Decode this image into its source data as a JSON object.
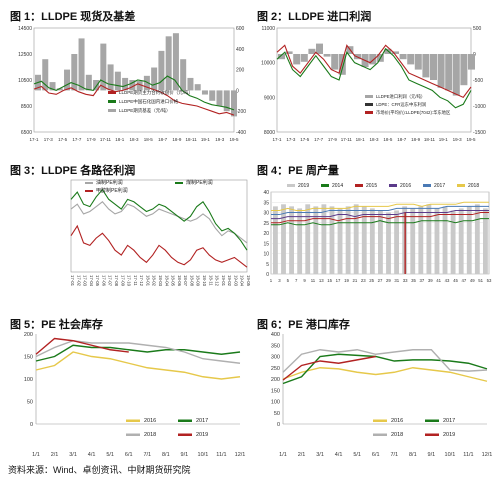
{
  "titles": {
    "fig1": "图 1：LLDPE 现货及基差",
    "fig2": "图 2：LLDPE 进口利润",
    "fig3": "图 3：LLDPE 各路径利润",
    "fig4": "图 4：PE 周产量",
    "fig5": "图 5：PE 社会库存",
    "fig6": "图 6：PE 港口库存"
  },
  "source": "资料来源：Wind、卓创资讯、中财期货研究院",
  "colors": {
    "green": "#1a7a1a",
    "red": "#b22222",
    "gray": "#a6a6a6",
    "dark": "#333333",
    "yellow": "#e6c84a",
    "blue": "#4a7ab5",
    "orange": "#e8872e"
  },
  "chart_data": [
    {
      "id": "fig1",
      "type": "area",
      "y_left": [
        6500,
        8500,
        10500,
        12500,
        14500
      ],
      "y_right": [
        -400,
        -200,
        0,
        200,
        400,
        600
      ],
      "x_ticks": [
        "17-1",
        "17-3",
        "17-5",
        "17-7",
        "17-9",
        "17-11",
        "18-1",
        "18-3",
        "18-5",
        "18-7",
        "18-9",
        "18-11",
        "19-1",
        "19-3",
        "19-5"
      ],
      "legend": [
        "LLDPE期货主力合约收盘价（元/吨）",
        "LLDPE中国石化国内进口价格",
        "LLDPE期货基差（元/吨）"
      ],
      "series": [
        {
          "values": [
            9800,
            10000,
            9500,
            9400,
            9700,
            9900,
            9600,
            9400,
            9300,
            10100,
            9800,
            9600,
            9700,
            9900,
            10200,
            10000,
            9800,
            9600,
            9300,
            8900,
            8700,
            8600,
            8500,
            8300,
            8100,
            7900,
            8000,
            7800
          ]
        },
        {
          "values": [
            10200,
            10400,
            9900,
            9700,
            10000,
            10300,
            10100,
            9800,
            9700,
            10500,
            10200,
            10100,
            10000,
            10200,
            10500,
            10400,
            10100,
            10300,
            10800,
            10500,
            9700,
            9300,
            9100,
            8800,
            8600,
            8500,
            8400,
            8200
          ]
        },
        {
          "values": [
            150,
            300,
            80,
            20,
            200,
            350,
            500,
            150,
            100,
            450,
            250,
            180,
            120,
            100,
            90,
            140,
            220,
            380,
            520,
            550,
            300,
            120,
            60,
            -40,
            -100,
            -150,
            -200,
            -250
          ]
        }
      ]
    },
    {
      "id": "fig2",
      "type": "area",
      "y_left": [
        8000,
        9000,
        10000,
        11000
      ],
      "y_right": [
        -1500,
        -1000,
        -500,
        0,
        500
      ],
      "x_ticks": [
        "17-1",
        "17-3",
        "17-5",
        "17-7",
        "17-9",
        "17-11",
        "18-1",
        "18-3",
        "18-5",
        "18-7",
        "18-9",
        "18-11",
        "19-1",
        "19-3",
        "19-5"
      ],
      "legend": [
        "LLDPE进口利润（元/吨）",
        "LDPE：CFR远东中东利润",
        "市场价(平均价):LLDPE(7042):华东地区"
      ],
      "series": [
        {
          "values": [
            10300,
            10500,
            9900,
            9700,
            10000,
            10300,
            10100,
            9800,
            9700,
            10500,
            10200,
            10100,
            10000,
            10200,
            10500,
            10300,
            10000,
            9700,
            9600,
            9500,
            9400,
            9300,
            9200,
            9100,
            9000,
            9300
          ]
        },
        {
          "values": [
            10100,
            10300,
            9800,
            9600,
            9900,
            10200,
            9900,
            9600,
            9500,
            10300,
            10000,
            9900,
            9800,
            10000,
            10400,
            10200,
            9900,
            9500,
            9400,
            9300,
            9200,
            9000,
            8900,
            8700,
            8800,
            9200
          ]
        },
        {
          "values": [
            -100,
            50,
            -200,
            -150,
            100,
            200,
            -50,
            -300,
            -400,
            150,
            -100,
            -250,
            -200,
            -150,
            100,
            50,
            -100,
            -200,
            -300,
            -450,
            -500,
            -650,
            -700,
            -800,
            -600,
            -300
          ]
        }
      ]
    },
    {
      "id": "fig3",
      "type": "line",
      "legend": [
        "油制PE利润",
        "煤制PE利润",
        "甲醇制PE利润"
      ],
      "x_ticks": [
        "17-01",
        "17-02",
        "17-03",
        "17-04",
        "17-05",
        "17-06",
        "17-07",
        "17-08",
        "17-09",
        "17-10",
        "17-11",
        "17-12",
        "18-01",
        "18-02",
        "18-03",
        "18-04",
        "18-05",
        "18-06",
        "18-07",
        "18-08",
        "18-09",
        "18-10",
        "18-11",
        "18-12",
        "19-01",
        "19-02",
        "19-03",
        "19-04",
        "19-05"
      ],
      "series": [
        {
          "name": "油制PE利润",
          "values": [
            2600,
            2800,
            2400,
            2500,
            2700,
            2900,
            2600,
            2400,
            2500,
            2800,
            2700,
            2500,
            2300,
            2400,
            2600,
            2500,
            2400,
            2300,
            2200,
            2100,
            2200,
            2400,
            2200,
            1800,
            1500,
            1700,
            1600,
            1400,
            1200
          ]
        },
        {
          "name": "煤制PE利润",
          "values": [
            3000,
            3300,
            2800,
            2700,
            3100,
            3400,
            3000,
            2800,
            2600,
            3000,
            2900,
            2700,
            2500,
            2600,
            2800,
            2700,
            2500,
            2300,
            2100,
            2300,
            2700,
            2900,
            2500,
            2000,
            1700,
            1800,
            1600,
            1300,
            900
          ]
        },
        {
          "name": "甲醇制PE利润",
          "values": [
            1500,
            1900,
            1200,
            1100,
            1400,
            1600,
            1300,
            900,
            700,
            1100,
            900,
            600,
            400,
            700,
            1100,
            900,
            600,
            400,
            300,
            500,
            900,
            1000,
            700,
            500,
            400,
            500,
            600,
            400,
            200
          ]
        }
      ]
    },
    {
      "id": "fig4",
      "type": "bar",
      "y_ticks": [
        0,
        5,
        10,
        15,
        20,
        25,
        30,
        35,
        40
      ],
      "x_ticks": [
        "1",
        "3",
        "5",
        "7",
        "9",
        "11",
        "13",
        "15",
        "17",
        "19",
        "21",
        "23",
        "25",
        "27",
        "29",
        "31",
        "33",
        "35",
        "37",
        "39",
        "41",
        "43",
        "45",
        "47",
        "49",
        "51",
        "53"
      ],
      "legend": [
        "2019",
        "2014",
        "2015",
        "2016",
        "2017",
        "2018"
      ],
      "bars_2019": [
        33,
        34,
        33,
        32,
        34,
        33,
        34,
        33,
        32,
        33,
        34,
        33,
        32,
        31,
        30,
        31,
        33,
        32,
        33,
        34,
        32,
        33,
        31,
        32,
        33,
        34,
        32
      ],
      "lines": {
        "2014": [
          24,
          24,
          25,
          24,
          24,
          25,
          24,
          24,
          25,
          25,
          25,
          25,
          25,
          26,
          25,
          25,
          25,
          25,
          26,
          26,
          26,
          26,
          25,
          26,
          26,
          27,
          27
        ],
        "2015": [
          25,
          25,
          26,
          26,
          26,
          27,
          27,
          27,
          26,
          27,
          27,
          28,
          28,
          28,
          27,
          28,
          28,
          28,
          28,
          28,
          29,
          29,
          29,
          29,
          29,
          30,
          30
        ],
        "2016": [
          27,
          27,
          28,
          28,
          28,
          28,
          28,
          28,
          29,
          29,
          28,
          29,
          29,
          29,
          29,
          29,
          30,
          30,
          30,
          30,
          30,
          30,
          31,
          31,
          31,
          31,
          31
        ],
        "2017": [
          29,
          29,
          30,
          30,
          30,
          30,
          30,
          31,
          31,
          31,
          31,
          31,
          31,
          31,
          31,
          32,
          32,
          32,
          32,
          32,
          32,
          33,
          33,
          33,
          33,
          33,
          33
        ],
        "2018": [
          31,
          31,
          32,
          31,
          31,
          32,
          32,
          32,
          32,
          32,
          33,
          33,
          33,
          33,
          33,
          34,
          34,
          34,
          33,
          34,
          34,
          34,
          34,
          35,
          35,
          35,
          35
        ]
      }
    },
    {
      "id": "fig5",
      "type": "line",
      "y_ticks": [
        0,
        50,
        100,
        150,
        200
      ],
      "x_ticks": [
        "1/1",
        "2/1",
        "3/1",
        "4/1",
        "5/1",
        "6/1",
        "7/1",
        "8/1",
        "9/1",
        "10/1",
        "11/1",
        "12/1"
      ],
      "legend": [
        "2016",
        "2017",
        "2018",
        "2019"
      ],
      "series": [
        {
          "name": "2016",
          "values": [
            120,
            130,
            160,
            150,
            145,
            135,
            125,
            120,
            115,
            105,
            100,
            105
          ]
        },
        {
          "name": "2017",
          "values": [
            140,
            150,
            175,
            170,
            170,
            165,
            160,
            165,
            165,
            160,
            155,
            160
          ]
        },
        {
          "name": "2018",
          "values": [
            150,
            170,
            185,
            180,
            180,
            180,
            175,
            170,
            160,
            145,
            140,
            135
          ]
        },
        {
          "name": "2019",
          "values": [
            155,
            190,
            185,
            175,
            165,
            160
          ]
        }
      ]
    },
    {
      "id": "fig6",
      "type": "line",
      "y_ticks": [
        0,
        50,
        100,
        150,
        200,
        250,
        300,
        350,
        400
      ],
      "x_ticks": [
        "1/1",
        "2/1",
        "3/1",
        "4/1",
        "5/1",
        "6/1",
        "7/1",
        "8/1",
        "9/1",
        "10/1",
        "11/1",
        "12/1"
      ],
      "legend": [
        "2016",
        "2017",
        "2018",
        "2019"
      ],
      "series": [
        {
          "name": "2016",
          "values": [
            200,
            230,
            250,
            245,
            230,
            220,
            230,
            250,
            240,
            230,
            210,
            190
          ]
        },
        {
          "name": "2017",
          "values": [
            180,
            210,
            300,
            310,
            305,
            300,
            280,
            285,
            285,
            280,
            270,
            245
          ]
        },
        {
          "name": "2018",
          "values": [
            230,
            310,
            330,
            320,
            330,
            310,
            320,
            330,
            330,
            240,
            235,
            240
          ]
        },
        {
          "name": "2019",
          "values": [
            195,
            260,
            280,
            270,
            285,
            300
          ]
        }
      ]
    }
  ]
}
